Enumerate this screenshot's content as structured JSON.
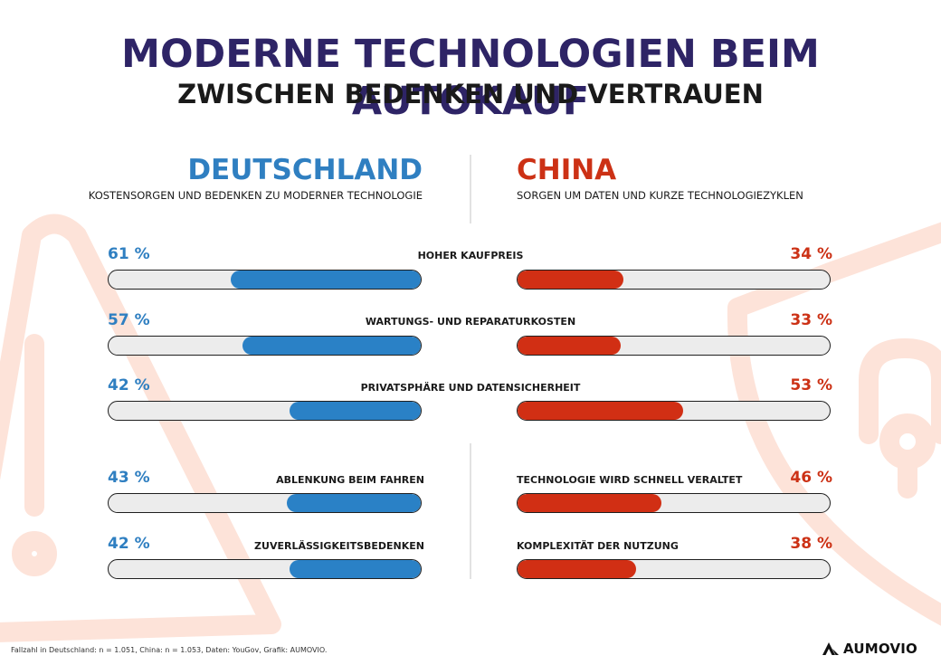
{
  "header": {
    "title": "MODERNE TECHNOLOGIEN BEIM AUTOKAUF",
    "subtitle": "ZWISCHEN BEDENKEN UND VERTRAUEN"
  },
  "germany": {
    "name": "DEUTSCHLAND",
    "description": "KOSTENSORGEN UND BEDENKEN ZU MODERNER TECHNOLOGIE"
  },
  "china": {
    "name": "CHINA",
    "description": "SORGEN UM DATEN UND KURZE TECHNOLOGIEZYKLEN"
  },
  "colors": {
    "title": "#2e2466",
    "germany": "#2a81c6",
    "china": "#d12f14",
    "track": "#ececec"
  },
  "chart_data": {
    "type": "bar",
    "title": "MODERNE TECHNOLOGIEN BEIM AUTOKAUF",
    "subtitle": "ZWISCHEN BEDENKEN UND VERTRAUEN",
    "unit": "%",
    "ylim": [
      0,
      100
    ],
    "shared_categories": [
      {
        "label": "HOHER KAUFPREIS",
        "germany": 61,
        "china": 34,
        "germany_text": "61 %",
        "china_text": "34 %"
      },
      {
        "label": "WARTUNGS- UND REPARATURKOSTEN",
        "germany": 57,
        "china": 33,
        "germany_text": "57 %",
        "china_text": "33 %"
      },
      {
        "label": "PRIVATSPHÄRE UND DATENSICHERHEIT",
        "germany": 42,
        "china": 53,
        "germany_text": "42 %",
        "china_text": "53 %"
      }
    ],
    "germany_only": [
      {
        "label": "ABLENKUNG BEIM FAHREN",
        "value": 43,
        "text": "43 %"
      },
      {
        "label": "ZUVERLÄSSIGKEITSBEDENKEN",
        "value": 42,
        "text": "42 %"
      }
    ],
    "china_only": [
      {
        "label": "TECHNOLOGIE WIRD SCHNELL VERALTET",
        "value": 46,
        "text": "46 %"
      },
      {
        "label": "KOMPLEXITÄT DER NUTZUNG",
        "value": 38,
        "text": "38 %"
      }
    ]
  },
  "footer": {
    "note": "Fallzahl in Deutschland: n = 1.051, China: n = 1.053, Daten: YouGov, Grafik: AUMOVIO.",
    "logo_text": "AUMOVIO"
  }
}
